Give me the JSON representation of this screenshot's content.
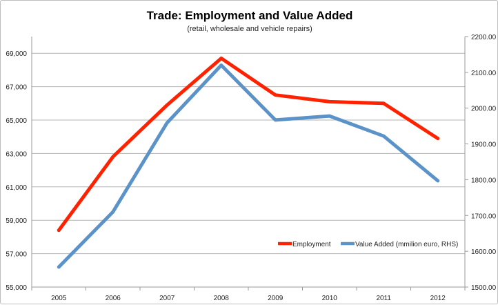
{
  "chart_data": {
    "type": "line",
    "title": "Trade: Employment and Value Added",
    "subtitle": "(retail, wholesale and vehicle repairs)",
    "categories": [
      "2005",
      "2006",
      "2007",
      "2008",
      "2009",
      "2010",
      "2011",
      "2012"
    ],
    "y_left": {
      "range": [
        55000,
        70000
      ],
      "ticks": [
        "55,000",
        "57,000",
        "59,000",
        "61,000",
        "63,000",
        "65,000",
        "67,000",
        "69,000"
      ],
      "tick_values": [
        55000,
        57000,
        59000,
        61000,
        63000,
        65000,
        67000,
        69000
      ]
    },
    "y_right": {
      "range": [
        1500,
        2200
      ],
      "ticks": [
        "1500.00",
        "1600.00",
        "1700.00",
        "1800.00",
        "1900.00",
        "2000.00",
        "2100.00",
        "2200.00"
      ],
      "tick_values": [
        1500,
        1600,
        1700,
        1800,
        1900,
        2000,
        2100,
        2200
      ]
    },
    "grid": true,
    "legend_position": "bottom-right inside plot",
    "series": [
      {
        "name": "Employment",
        "axis": "left",
        "color": "#ff2200",
        "values": [
          58400,
          62800,
          65900,
          68700,
          66500,
          66100,
          66000,
          63900
        ]
      },
      {
        "name": "Value Added (mmilion euro, RHS)",
        "axis": "right",
        "color": "#5b93c9",
        "values": [
          1556,
          1710,
          1959,
          2120,
          1967,
          1978,
          1922,
          1797
        ]
      }
    ]
  }
}
